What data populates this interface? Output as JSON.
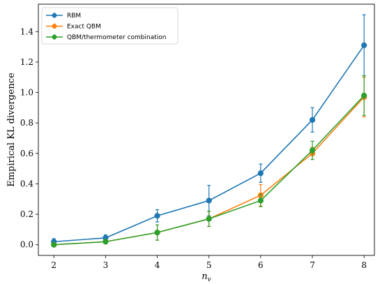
{
  "chart_data": {
    "type": "line",
    "title": "",
    "xlabel": "n",
    "xlabel_sub": "v",
    "ylabel": "Empirical KL divergence",
    "x": [
      2,
      3,
      4,
      5,
      6,
      7,
      8
    ],
    "xlim": [
      1.7,
      8.2
    ],
    "ylim": [
      -0.07,
      1.58
    ],
    "xticks": [
      2,
      3,
      4,
      5,
      6,
      7,
      8
    ],
    "yticks": [
      0.0,
      0.2,
      0.4,
      0.6,
      0.8,
      1.0,
      1.2,
      1.4
    ],
    "ytick_labels": [
      "0.0",
      "0.2",
      "0.4",
      "0.6",
      "0.8",
      "1.0",
      "1.2",
      "1.4"
    ],
    "grid": false,
    "legend_position": "top-left",
    "series": [
      {
        "name": "RBM",
        "color": "#1f77b4",
        "values": [
          0.02,
          0.045,
          0.19,
          0.29,
          0.47,
          0.82,
          1.31
        ],
        "errors": [
          0.02,
          0.02,
          0.04,
          0.1,
          0.06,
          0.08,
          0.2
        ]
      },
      {
        "name": "Exact QBM",
        "color": "#ff7f0e",
        "values": [
          0.0,
          0.02,
          0.08,
          0.17,
          0.325,
          0.6,
          0.97
        ],
        "errors": [
          0.01,
          0.01,
          0.05,
          0.05,
          0.07,
          0.04,
          0.13
        ]
      },
      {
        "name": "QBM/thermometer combination",
        "color": "#2ca02c",
        "values": [
          0.0,
          0.02,
          0.08,
          0.17,
          0.29,
          0.62,
          0.98
        ],
        "errors": [
          0.01,
          0.01,
          0.05,
          0.05,
          0.04,
          0.06,
          0.13
        ]
      }
    ]
  }
}
